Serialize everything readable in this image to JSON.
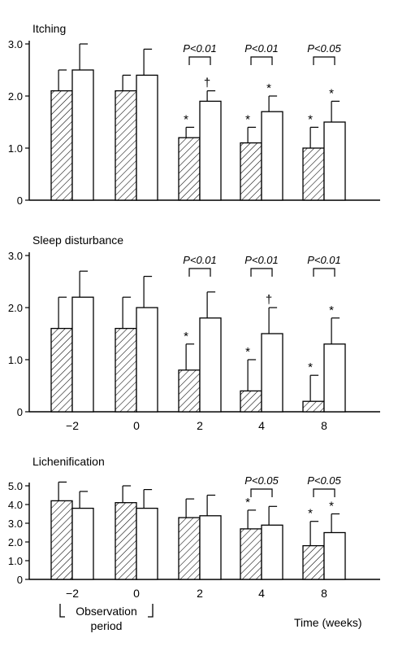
{
  "colors": {
    "hatched": "#ffffff",
    "hatch_line": "#000000",
    "open": "#ffffff",
    "axis": "#000000"
  },
  "legend_hatch_meaning": "",
  "chart_data": [
    {
      "type": "bar",
      "title": "Itching",
      "categories": [
        "−2",
        "0",
        "2",
        "4",
        "8"
      ],
      "show_category_labels": false,
      "ylim": [
        0,
        3.0
      ],
      "yticks": [
        0,
        1.0,
        2.0,
        3.0
      ],
      "ytick_labels": [
        "0",
        "1.0",
        "2.0",
        "3.0"
      ],
      "series": [
        {
          "pattern": "hatched",
          "values": [
            2.1,
            2.1,
            1.2,
            1.1,
            1.0
          ],
          "errors": [
            0.4,
            0.3,
            0.2,
            0.3,
            0.4
          ],
          "marks": [
            "",
            "",
            "*",
            "*",
            "*"
          ]
        },
        {
          "pattern": "open",
          "values": [
            2.5,
            2.4,
            1.9,
            1.7,
            1.5
          ],
          "errors": [
            0.5,
            0.5,
            0.2,
            0.3,
            0.4
          ],
          "marks": [
            "",
            "",
            "†",
            "*",
            "*"
          ]
        }
      ],
      "comparisons": [
        {
          "category": 2,
          "label": "P<0.01"
        },
        {
          "category": 3,
          "label": "P<0.01"
        },
        {
          "category": 4,
          "label": "P<0.05"
        }
      ]
    },
    {
      "type": "bar",
      "title": "Sleep disturbance",
      "categories": [
        "−2",
        "0",
        "2",
        "4",
        "8"
      ],
      "show_category_labels": true,
      "ylim": [
        0,
        3.0
      ],
      "yticks": [
        0,
        1.0,
        2.0,
        3.0
      ],
      "ytick_labels": [
        "0",
        "1.0",
        "2.0",
        "3.0"
      ],
      "series": [
        {
          "pattern": "hatched",
          "values": [
            1.6,
            1.6,
            0.8,
            0.4,
            0.2
          ],
          "errors": [
            0.6,
            0.6,
            0.5,
            0.6,
            0.5
          ],
          "marks": [
            "",
            "",
            "*",
            "*",
            "*"
          ]
        },
        {
          "pattern": "open",
          "values": [
            2.2,
            2.0,
            1.8,
            1.5,
            1.3
          ],
          "errors": [
            0.5,
            0.6,
            0.5,
            0.5,
            0.5
          ],
          "marks": [
            "",
            "",
            "",
            "†",
            "*"
          ]
        }
      ],
      "comparisons": [
        {
          "category": 2,
          "label": "P<0.01"
        },
        {
          "category": 3,
          "label": "P<0.01"
        },
        {
          "category": 4,
          "label": "P<0.01"
        }
      ]
    },
    {
      "type": "bar",
      "title": "Lichenification",
      "categories": [
        "−2",
        "0",
        "2",
        "4",
        "8"
      ],
      "show_category_labels": true,
      "ylim": [
        0,
        5.0
      ],
      "yticks": [
        0,
        1.0,
        2.0,
        3.0,
        4.0,
        5.0
      ],
      "ytick_labels": [
        "0",
        "1.0",
        "2.0",
        "3.0",
        "4.0",
        "5.0"
      ],
      "series": [
        {
          "pattern": "hatched",
          "values": [
            4.2,
            4.1,
            3.3,
            2.7,
            1.8
          ],
          "errors": [
            1.0,
            0.9,
            1.0,
            1.0,
            1.3
          ],
          "marks": [
            "",
            "",
            "",
            "*",
            "*"
          ]
        },
        {
          "pattern": "open",
          "values": [
            3.8,
            3.8,
            3.4,
            2.9,
            2.5
          ],
          "errors": [
            0.9,
            1.0,
            1.1,
            1.0,
            1.0
          ],
          "marks": [
            "",
            "",
            "",
            "",
            "*"
          ]
        }
      ],
      "comparisons": [
        {
          "category": 3,
          "label": "P<0.05"
        },
        {
          "category": 4,
          "label": "P<0.05"
        }
      ]
    }
  ],
  "x_axis": {
    "label": "Time (weeks)",
    "period_label_line1": "Observation",
    "period_label_line2": "period"
  }
}
